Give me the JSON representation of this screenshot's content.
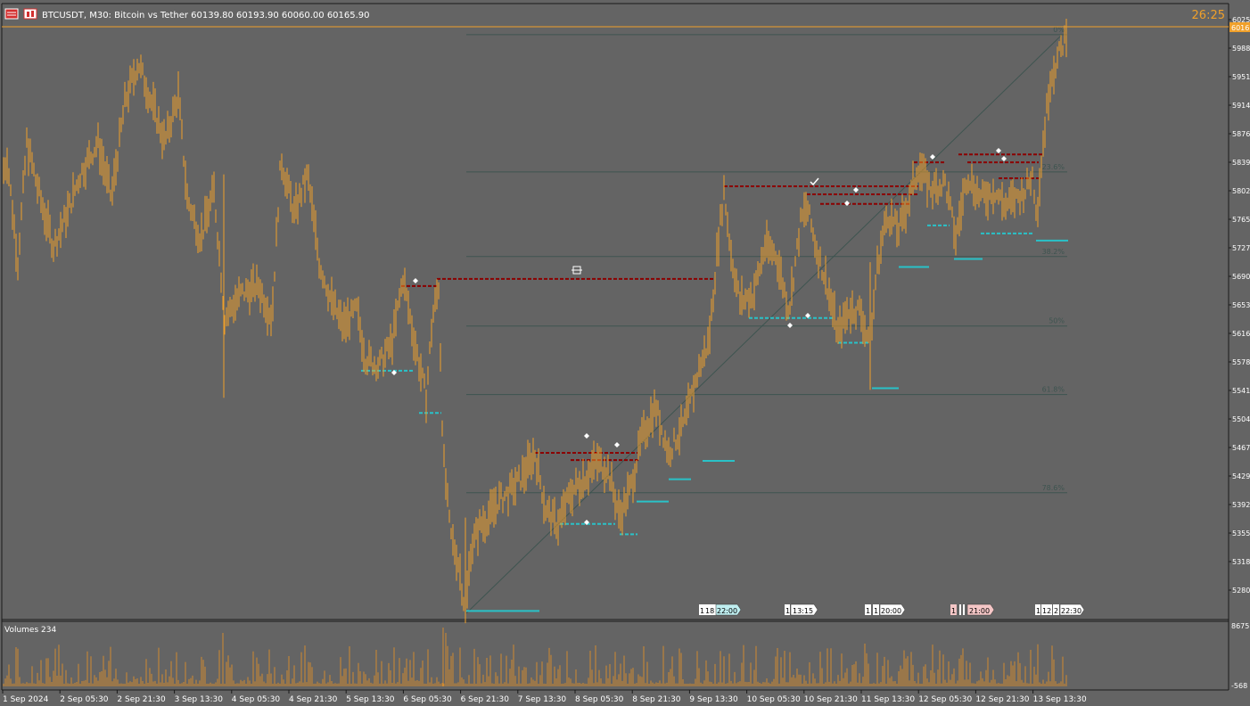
{
  "header": {
    "symbol_line": "BTCUSDT, M30:  Bitcoin vs Tether  60139.80 60193.90 60060.00 60165.90",
    "timer": "26:25"
  },
  "colors": {
    "background": "#646464",
    "candles": "#f0a02a",
    "price_line": "#f0a02a",
    "resistance": "#8b0000",
    "support": "#29c2c8",
    "fib": "#3e5450",
    "volume": "#d08a30"
  },
  "price_axis": {
    "current_price_tag": "6016",
    "labels": [
      "6025",
      "5988",
      "5951",
      "5914",
      "5876",
      "5839",
      "5802",
      "5765",
      "5727",
      "5690",
      "5653",
      "5616",
      "5578",
      "5541",
      "5504",
      "5467",
      "5429",
      "5392",
      "5355",
      "5318",
      "5280"
    ]
  },
  "fib_levels": [
    {
      "label": "0%",
      "price": 60050
    },
    {
      "label": "23.6%",
      "price": 58330
    },
    {
      "label": "38.2%",
      "price": 57270
    },
    {
      "label": "50%",
      "price": 56400
    },
    {
      "label": "61.8%",
      "price": 55540
    },
    {
      "label": "78.6%",
      "price": 54310
    }
  ],
  "volume_panel": {
    "title": "Volumes 234",
    "max_label": "8675",
    "min_label": "-568"
  },
  "time_axis": {
    "labels": [
      "1 Sep 2024",
      "2 Sep 05:30",
      "2 Sep 21:30",
      "3 Sep 13:30",
      "4 Sep 05:30",
      "4 Sep 21:30",
      "5 Sep 13:30",
      "6 Sep 05:30",
      "6 Sep 21:30",
      "7 Sep 13:30",
      "8 Sep 05:30",
      "8 Sep 21:30",
      "9 Sep 13:30",
      "10 Sep 05:30",
      "10 Sep 21:30",
      "11 Sep 13:30",
      "12 Sep 05:30",
      "12 Sep 21:30",
      "13 Sep 13:30"
    ]
  },
  "session_tags": [
    {
      "text": "1",
      "color": "#ffffff"
    },
    {
      "text": "18",
      "color": "#ffffff"
    },
    {
      "text": "22:00",
      "color": "#bfeef0"
    },
    {
      "text": "1",
      "color": "#ffffff"
    },
    {
      "text": "13:15",
      "color": "#ffffff"
    },
    {
      "text": "1",
      "color": "#ffffff"
    },
    {
      "text": "1",
      "color": "#ffffff"
    },
    {
      "text": "20:00",
      "color": "#ffffff"
    },
    {
      "text": "1",
      "color": "#f4c6c6"
    },
    {
      "text": "21:00",
      "color": "#f4c6c6"
    },
    {
      "text": "1",
      "color": "#ffffff"
    },
    {
      "text": "12",
      "color": "#ffffff"
    },
    {
      "text": "2",
      "color": "#ffffff"
    },
    {
      "text": "22:30",
      "color": "#ffffff"
    }
  ],
  "chart_data": {
    "type": "candlestick",
    "title": "BTCUSDT, M30:  Bitcoin vs Tether",
    "anchors": [
      [
        0,
        58200
      ],
      [
        8,
        58500
      ],
      [
        20,
        57200
      ],
      [
        30,
        58700
      ],
      [
        45,
        58000
      ],
      [
        60,
        57400
      ],
      [
        75,
        57800
      ],
      [
        90,
        58300
      ],
      [
        110,
        58700
      ],
      [
        125,
        58000
      ],
      [
        140,
        59200
      ],
      [
        155,
        59700
      ],
      [
        170,
        59200
      ],
      [
        185,
        58700
      ],
      [
        200,
        59300
      ],
      [
        210,
        58000
      ],
      [
        225,
        57500
      ],
      [
        240,
        58100
      ],
      [
        252,
        56500
      ],
      [
        270,
        56800
      ],
      [
        290,
        56900
      ],
      [
        305,
        56500
      ],
      [
        315,
        58500
      ],
      [
        330,
        57800
      ],
      [
        345,
        58300
      ],
      [
        358,
        57200
      ],
      [
        372,
        56700
      ],
      [
        385,
        56400
      ],
      [
        400,
        56600
      ],
      [
        410,
        56000
      ],
      [
        425,
        55900
      ],
      [
        440,
        56200
      ],
      [
        452,
        57000
      ],
      [
        465,
        56200
      ],
      [
        478,
        55500
      ],
      [
        485,
        56500
      ],
      [
        492,
        56900
      ],
      [
        497,
        54800
      ],
      [
        505,
        53800
      ],
      [
        515,
        53400
      ],
      [
        522,
        52800
      ],
      [
        528,
        53600
      ],
      [
        538,
        53900
      ],
      [
        548,
        54000
      ],
      [
        558,
        54200
      ],
      [
        570,
        54300
      ],
      [
        585,
        54500
      ],
      [
        600,
        54800
      ],
      [
        612,
        54100
      ],
      [
        625,
        53900
      ],
      [
        640,
        54300
      ],
      [
        655,
        54500
      ],
      [
        670,
        54700
      ],
      [
        682,
        54600
      ],
      [
        695,
        54000
      ],
      [
        708,
        54400
      ],
      [
        720,
        55000
      ],
      [
        735,
        55400
      ],
      [
        750,
        54800
      ],
      [
        768,
        55200
      ],
      [
        785,
        55900
      ],
      [
        795,
        56200
      ],
      [
        805,
        57400
      ],
      [
        812,
        58100
      ],
      [
        820,
        57300
      ],
      [
        830,
        56700
      ],
      [
        845,
        56800
      ],
      [
        858,
        57400
      ],
      [
        870,
        57300
      ],
      [
        885,
        56600
      ],
      [
        898,
        57700
      ],
      [
        905,
        57900
      ],
      [
        915,
        57400
      ],
      [
        928,
        56900
      ],
      [
        940,
        56300
      ],
      [
        952,
        56600
      ],
      [
        965,
        56600
      ],
      [
        976,
        56100
      ],
      [
        983,
        57100
      ],
      [
        995,
        57800
      ],
      [
        1008,
        57600
      ],
      [
        1020,
        58000
      ],
      [
        1030,
        58400
      ],
      [
        1045,
        58100
      ],
      [
        1060,
        58200
      ],
      [
        1072,
        57500
      ],
      [
        1085,
        58300
      ],
      [
        1100,
        58000
      ],
      [
        1115,
        58100
      ],
      [
        1128,
        57900
      ],
      [
        1140,
        58000
      ],
      [
        1150,
        58100
      ],
      [
        1158,
        58300
      ],
      [
        1163,
        57800
      ],
      [
        1170,
        58700
      ],
      [
        1178,
        59500
      ],
      [
        1188,
        59800
      ],
      [
        1196,
        60050
      ]
    ],
    "resistance_levels": [
      {
        "x1": 450,
        "x2": 490,
        "price": 56900
      },
      {
        "x1": 490,
        "x2": 800,
        "price": 56990
      },
      {
        "x1": 600,
        "x2": 715,
        "price": 54810
      },
      {
        "x1": 640,
        "x2": 718,
        "price": 54720
      },
      {
        "x1": 812,
        "x2": 1030,
        "price": 58150
      },
      {
        "x1": 905,
        "x2": 1030,
        "price": 58050
      },
      {
        "x1": 920,
        "x2": 1020,
        "price": 57930
      },
      {
        "x1": 1025,
        "x2": 1060,
        "price": 58450
      },
      {
        "x1": 1075,
        "x2": 1170,
        "price": 58550
      },
      {
        "x1": 1085,
        "x2": 1165,
        "price": 58450
      },
      {
        "x1": 1120,
        "x2": 1165,
        "price": 58250
      }
    ],
    "support_levels": [
      {
        "x1": 405,
        "x2": 465,
        "price": 55840
      },
      {
        "x1": 470,
        "x2": 495,
        "price": 55310
      },
      {
        "x1": 628,
        "x2": 690,
        "price": 53920
      },
      {
        "x1": 695,
        "x2": 715,
        "price": 53790
      },
      {
        "x1": 840,
        "x2": 935,
        "price": 56500
      },
      {
        "x1": 940,
        "x2": 975,
        "price": 56190
      },
      {
        "x1": 1040,
        "x2": 1065,
        "price": 57660
      },
      {
        "x1": 1100,
        "x2": 1160,
        "price": 57560
      }
    ],
    "support_solid": [
      {
        "x1": 523,
        "x2": 605,
        "price": 52830
      },
      {
        "x1": 714,
        "x2": 750,
        "price": 54200
      },
      {
        "x1": 750,
        "x2": 775,
        "price": 54480
      },
      {
        "x1": 788,
        "x2": 824,
        "price": 54710
      },
      {
        "x1": 978,
        "x2": 1008,
        "price": 55620
      },
      {
        "x1": 1008,
        "x2": 1042,
        "price": 57140
      },
      {
        "x1": 1070,
        "x2": 1102,
        "price": 57240
      },
      {
        "x1": 1162,
        "x2": 1198,
        "price": 57470
      }
    ]
  }
}
